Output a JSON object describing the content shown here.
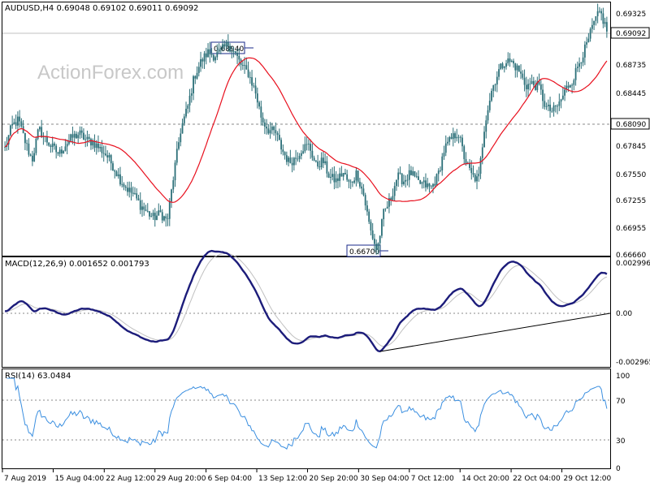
{
  "watermark": "ActionForex.com",
  "colors": {
    "candle": "#2b6f78",
    "ma": "#e8101e",
    "macd": "#1c1c7a",
    "signal": "#c0c0c0",
    "rsi": "#3b8fe0",
    "grid_dash": "#999999"
  },
  "chart_data": [
    {
      "type": "candlestick",
      "title": "AUDUSD,H4  0.69048 0.69102 0.69011 0.69092",
      "ylim": [
        0.6666,
        0.6938
      ],
      "y_ticks": [
        "0.69325",
        "0.69092",
        "0.68735",
        "0.68445",
        "0.68090",
        "0.67845",
        "0.67550",
        "0.67255",
        "0.66955",
        "0.66660"
      ],
      "y_tick_values": [
        0.69325,
        0.69092,
        0.68735,
        0.68445,
        0.6809,
        0.67845,
        0.6755,
        0.67255,
        0.66955,
        0.6666
      ],
      "current_price": "0.69092",
      "resistance_line": "0.68090",
      "annotations": [
        {
          "label": "0.68940",
          "value": 0.6894,
          "date": "12 Sep 2019"
        },
        {
          "label": "0.66700",
          "value": 0.667,
          "date": "1 Oct 2019"
        }
      ],
      "close_path": [
        0.6781,
        0.6805,
        0.6812,
        0.6788,
        0.6768,
        0.6802,
        0.6791,
        0.6782,
        0.6775,
        0.6786,
        0.6793,
        0.6797,
        0.679,
        0.6788,
        0.6781,
        0.6774,
        0.6762,
        0.6748,
        0.6738,
        0.6731,
        0.672,
        0.6712,
        0.6706,
        0.6711,
        0.6702,
        0.6755,
        0.6802,
        0.6825,
        0.6859,
        0.6875,
        0.6885,
        0.6881,
        0.6887,
        0.6894,
        0.6884,
        0.687,
        0.6862,
        0.6843,
        0.6812,
        0.6801,
        0.6798,
        0.6779,
        0.6766,
        0.6771,
        0.6782,
        0.6784,
        0.6762,
        0.6768,
        0.675,
        0.6746,
        0.6755,
        0.6741,
        0.6755,
        0.6732,
        0.6694,
        0.667,
        0.6711,
        0.6726,
        0.6751,
        0.6746,
        0.6755,
        0.6744,
        0.6742,
        0.6738,
        0.6751,
        0.6781,
        0.6791,
        0.6799,
        0.6769,
        0.6752,
        0.6746,
        0.6811,
        0.6845,
        0.6865,
        0.6876,
        0.6874,
        0.6865,
        0.6849,
        0.6851,
        0.6847,
        0.6825,
        0.6821,
        0.683,
        0.6846,
        0.6856,
        0.6876,
        0.6892,
        0.6915,
        0.6929,
        0.6909
      ],
      "moving_average": {
        "name": "",
        "type": "line"
      }
    },
    {
      "type": "line",
      "title": "MACD(12,26,9) 0.001652 0.001793",
      "ylim": [
        -0.0034,
        0.0033
      ],
      "y_ticks": [
        "0.002996",
        "0.00",
        "-0.002965"
      ],
      "y_tick_values": [
        0.002996,
        0.0,
        -0.002965
      ],
      "trendline": {
        "from": {
          "date": "30 Sep 2019",
          "value": -0.0024
        },
        "to": {
          "date": "31 Oct 2019",
          "value": 0.0
        }
      }
    },
    {
      "type": "line",
      "title": "RSI(14) 63.0484",
      "ylim": [
        0,
        100
      ],
      "y_ticks": [
        "100",
        "70",
        "30",
        "0"
      ],
      "y_tick_values": [
        100,
        70,
        30,
        0
      ],
      "levels": [
        70,
        30
      ]
    }
  ],
  "x_axis": {
    "labels": [
      "7 Aug 2019",
      "15 Aug 04:00",
      "22 Aug 12:00",
      "29 Aug 20:00",
      "6 Sep 04:00",
      "13 Sep 12:00",
      "20 Sep 20:00",
      "30 Sep 04:00",
      "7 Oct 12:00",
      "14 Oct 20:00",
      "22 Oct 04:00",
      "29 Oct 12:00"
    ],
    "label_x_fractions": [
      0.0,
      0.0835,
      0.1675,
      0.251,
      0.335,
      0.4185,
      0.502,
      0.586,
      0.6695,
      0.753,
      0.837,
      0.9205
    ]
  }
}
